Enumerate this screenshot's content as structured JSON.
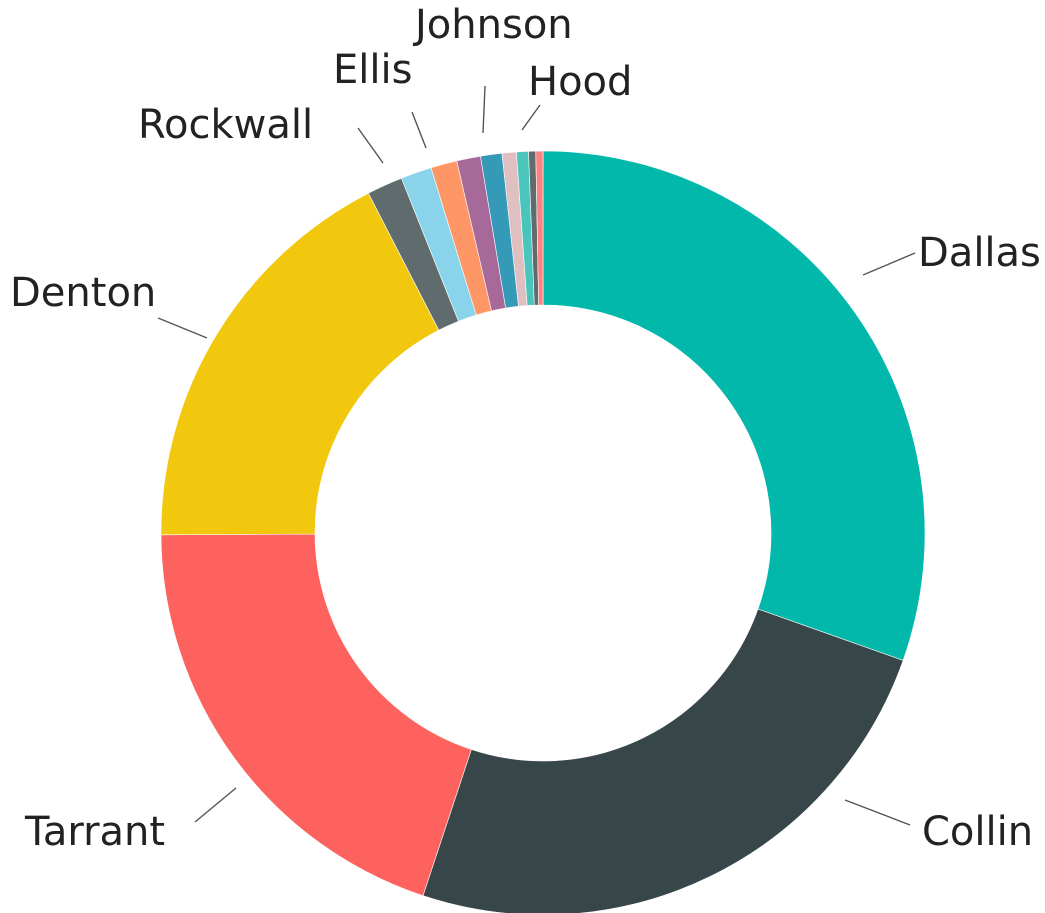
{
  "chart_data": {
    "type": "pie",
    "title": "",
    "categories": [
      "Dallas",
      "Collin",
      "Tarrant",
      "Denton",
      "Rockwall",
      "Ellis",
      "Johnson",
      "Hood",
      "",
      "",
      "",
      "",
      ""
    ],
    "values": [
      30.2,
      24.5,
      19.7,
      17.4,
      1.5,
      1.3,
      1.1,
      1.0,
      0.9,
      0.6,
      0.5,
      0.3,
      0.3
    ],
    "value_unit": "percent",
    "labeled": [
      true,
      true,
      true,
      true,
      true,
      true,
      true,
      true,
      false,
      false,
      false,
      false,
      false
    ],
    "colors": [
      "#01b8aa",
      "#374649",
      "#fd625e",
      "#f2c80f",
      "#5f6b6d",
      "#8ad4eb",
      "#fe9666",
      "#a66999",
      "#3599b8",
      "#dfbfbf",
      "#4ac5bb",
      "#5f6b6d",
      "#fb8281"
    ],
    "style": "donut",
    "start": "top, clockwise",
    "legend": "none"
  }
}
